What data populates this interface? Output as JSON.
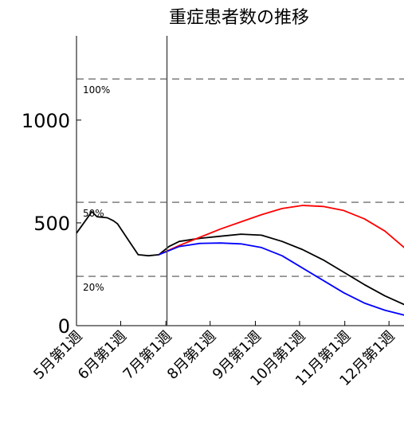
{
  "chart_data": {
    "type": "line",
    "title": "重症患者数の推移",
    "xlabel": "",
    "ylabel": "",
    "ylim": [
      0,
      1410
    ],
    "x_ticks": [
      "5月第1週",
      "6月第1週",
      "7月第1週",
      "8月第1週",
      "9月第1週",
      "10月第1週",
      "11月第1週",
      "12月第1週"
    ],
    "y_ticks": [
      0,
      500,
      1000
    ],
    "grid": false,
    "reference_lines": [
      {
        "label": "100%",
        "value": 1200
      },
      {
        "label": "50%",
        "value": 600
      },
      {
        "label": "20%",
        "value": 240
      }
    ],
    "divider_week": 8.8,
    "series": [
      {
        "color": "#000000",
        "points": [
          [
            0,
            450
          ],
          [
            1,
            520
          ],
          [
            1.5,
            555
          ],
          [
            2,
            530
          ],
          [
            3,
            525
          ],
          [
            3.6,
            510
          ],
          [
            4,
            495
          ],
          [
            5,
            420
          ],
          [
            6,
            345
          ],
          [
            7,
            340
          ],
          [
            8,
            345
          ],
          [
            9,
            385
          ],
          [
            10,
            410
          ],
          [
            12,
            425
          ],
          [
            14,
            435
          ],
          [
            16,
            445
          ],
          [
            18,
            440
          ],
          [
            20,
            410
          ],
          [
            22,
            370
          ],
          [
            24,
            320
          ],
          [
            26,
            260
          ],
          [
            28,
            200
          ],
          [
            30,
            145
          ],
          [
            32,
            100
          ],
          [
            33,
            85
          ]
        ]
      },
      {
        "color": "#ff0000",
        "points": [
          [
            8,
            345
          ],
          [
            10,
            390
          ],
          [
            12,
            430
          ],
          [
            14,
            470
          ],
          [
            16,
            505
          ],
          [
            18,
            540
          ],
          [
            20,
            570
          ],
          [
            22,
            585
          ],
          [
            24,
            580
          ],
          [
            26,
            560
          ],
          [
            28,
            520
          ],
          [
            30,
            460
          ],
          [
            32,
            375
          ],
          [
            33,
            320
          ]
        ]
      },
      {
        "color": "#0000ff",
        "points": [
          [
            8,
            345
          ],
          [
            10,
            385
          ],
          [
            12,
            400
          ],
          [
            14,
            402
          ],
          [
            16,
            398
          ],
          [
            18,
            380
          ],
          [
            20,
            340
          ],
          [
            22,
            280
          ],
          [
            24,
            220
          ],
          [
            26,
            160
          ],
          [
            28,
            110
          ],
          [
            30,
            75
          ],
          [
            32,
            50
          ],
          [
            33,
            40
          ]
        ]
      }
    ]
  }
}
